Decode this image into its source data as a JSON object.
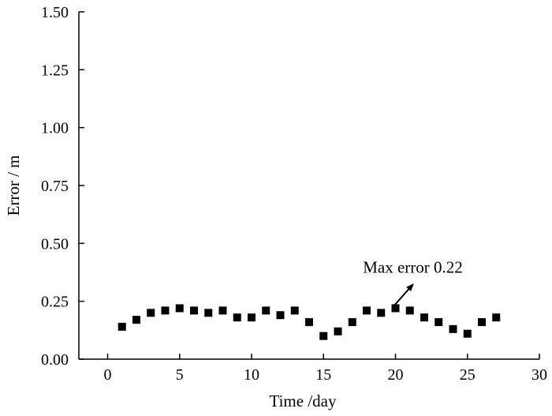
{
  "chart_data": {
    "type": "scatter",
    "title": "",
    "xlabel": "Time /day",
    "ylabel": "Error / m",
    "xlim": [
      -2,
      30
    ],
    "ylim": [
      0,
      1.5
    ],
    "x_ticks": [
      0,
      5,
      10,
      15,
      20,
      25,
      30
    ],
    "x_tick_labels": [
      "0",
      "5",
      "10",
      "15",
      "20",
      "25",
      "30"
    ],
    "y_ticks": [
      0,
      0.25,
      0.5,
      0.75,
      1.0,
      1.25,
      1.5
    ],
    "y_tick_labels": [
      "0.00",
      "0.25",
      "0.50",
      "0.75",
      "1.00",
      "1.25",
      "1.50"
    ],
    "grid": false,
    "marker": "square",
    "marker_color": "#000000",
    "series": [
      {
        "name": "Error",
        "x": [
          1,
          2,
          3,
          4,
          5,
          6,
          7,
          8,
          9,
          10,
          11,
          12,
          13,
          14,
          15,
          16,
          17,
          18,
          19,
          20,
          21,
          22,
          23,
          24,
          25,
          26,
          27
        ],
        "y": [
          0.14,
          0.17,
          0.2,
          0.21,
          0.22,
          0.21,
          0.2,
          0.21,
          0.18,
          0.18,
          0.21,
          0.19,
          0.21,
          0.16,
          0.1,
          0.12,
          0.16,
          0.21,
          0.2,
          0.22,
          0.21,
          0.18,
          0.16,
          0.13,
          0.11,
          0.16,
          0.18
        ]
      }
    ],
    "annotation": {
      "text": "Max error 0.22",
      "x": 20,
      "y": 0.22
    }
  }
}
